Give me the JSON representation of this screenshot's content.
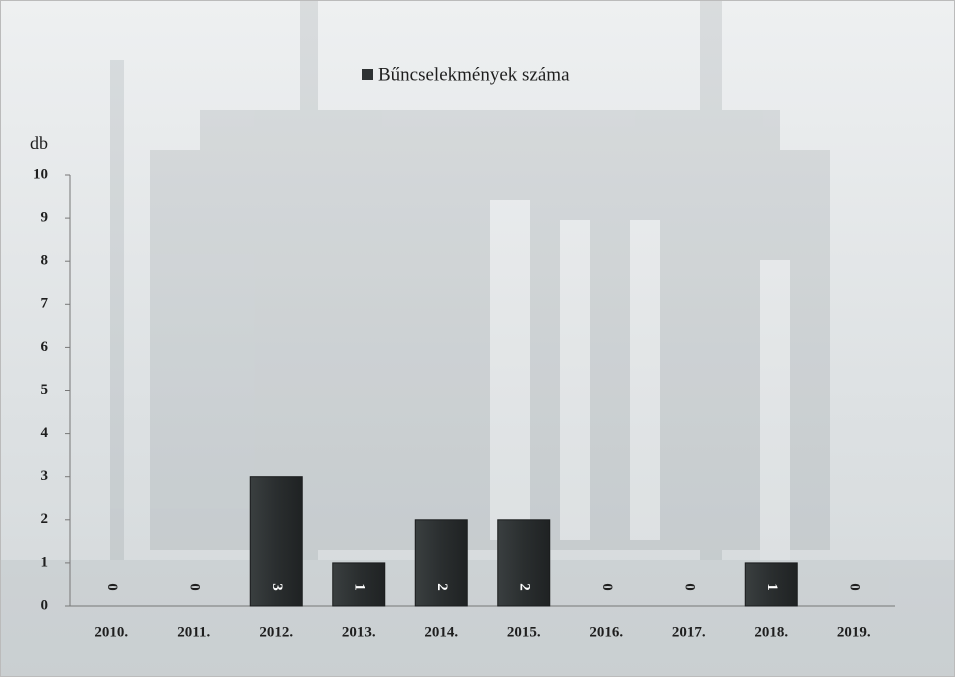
{
  "chart_data": {
    "type": "bar",
    "legend": "Bűncselekmények száma",
    "y_label": "db",
    "categories": [
      "2010.",
      "2011.",
      "2012.",
      "2013.",
      "2014.",
      "2015.",
      "2016.",
      "2017.",
      "2018.",
      "2019."
    ],
    "values": [
      0,
      0,
      3,
      1,
      2,
      2,
      0,
      0,
      1,
      0
    ],
    "color": "#2e3233",
    "ylim": [
      0,
      10
    ],
    "yticks": [
      0,
      1,
      2,
      3,
      4,
      5,
      6,
      7,
      8,
      9,
      10
    ],
    "grid": false
  }
}
